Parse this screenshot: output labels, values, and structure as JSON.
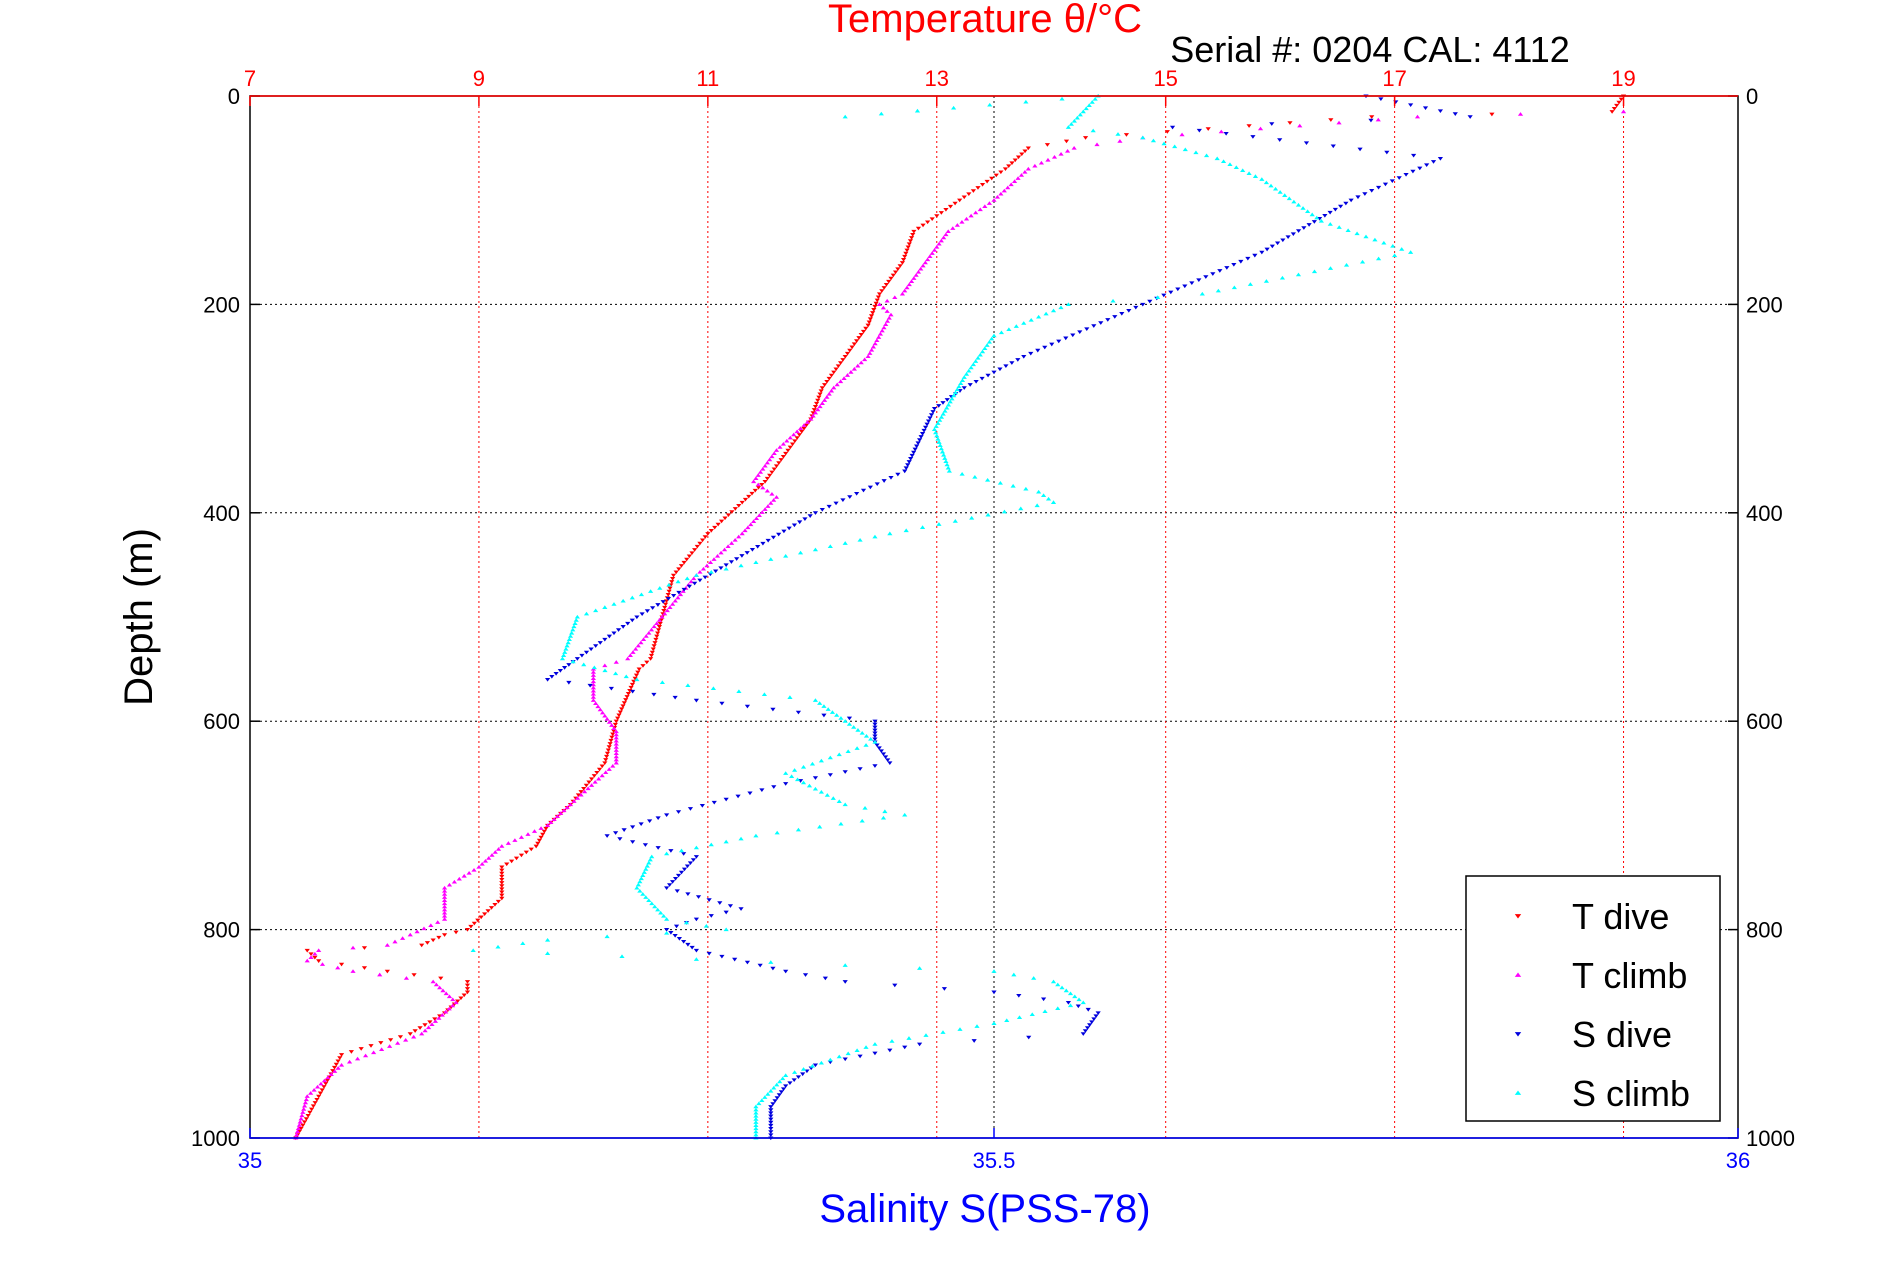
{
  "chart_data": {
    "type": "scatter",
    "title": "Temperature θ/°C",
    "subtitle": "Serial #: 0204  CAL: 4112",
    "ylabel": "Depth (m)",
    "xlabel_bottom": "Salinity S(PSS-78)",
    "xlabel_top": "Temperature θ/°C",
    "y_reversed": true,
    "ylim": [
      0,
      1000
    ],
    "ylim_ticks": [
      "0",
      "200",
      "400",
      "600",
      "800",
      "1000"
    ],
    "y_ticks": [
      0,
      200,
      400,
      600,
      800,
      1000
    ],
    "temp_lim": [
      7,
      20
    ],
    "temp_ticks": [
      7,
      9,
      11,
      13,
      15,
      17,
      19
    ],
    "temp_tick_labels": [
      "7",
      "9",
      "11",
      "13",
      "15",
      "17",
      "19"
    ],
    "sal_lim": [
      35,
      36
    ],
    "sal_ticks": [
      35,
      35.5,
      36
    ],
    "sal_tick_labels": [
      "35",
      "35.5",
      "36"
    ],
    "grid": true,
    "legend_position": "bottom-right",
    "colors": {
      "temperature_axis": "#ff0000",
      "salinity_axis": "#0000ff",
      "t_dive": "#ff0000",
      "t_climb": "#ff00ff",
      "s_dive": "#0000dd",
      "s_climb": "#00ffff"
    },
    "series": [
      {
        "name": "T dive",
        "axis": "temperature",
        "marker": "triangle-down",
        "color": "#ff0000",
        "x": [
          19.0,
          18.9,
          16.8,
          14.3,
          13.8,
          13.6,
          13.2,
          12.8,
          12.7,
          12.5,
          12.4,
          12.2,
          12.0,
          11.9,
          11.7,
          11.5,
          11.3,
          11.0,
          10.7,
          10.6,
          10.5,
          10.4,
          10.2,
          10.1,
          9.8,
          9.6,
          9.5,
          9.2,
          9.2,
          8.9,
          8.7,
          8.6,
          8.5,
          7.5,
          7.6,
          8.2,
          8.9,
          8.9,
          8.7,
          8.4,
          7.8,
          7.6,
          7.4
        ],
        "y": [
          0,
          15,
          20,
          40,
          50,
          70,
          100,
          130,
          160,
          190,
          220,
          250,
          280,
          310,
          340,
          370,
          390,
          420,
          460,
          500,
          540,
          550,
          600,
          640,
          680,
          700,
          720,
          740,
          770,
          800,
          805,
          810,
          815,
          820,
          830,
          840,
          850,
          860,
          880,
          900,
          920,
          960,
          1000
        ]
      },
      {
        "name": "T climb",
        "axis": "temperature",
        "marker": "triangle-up",
        "color": "#ff00ff",
        "x": [
          19.0,
          17.2,
          14.8,
          14.2,
          13.8,
          13.5,
          13.1,
          12.9,
          12.7,
          12.5,
          12.6,
          12.4,
          12.1,
          11.9,
          11.6,
          11.4,
          11.6,
          11.3,
          10.9,
          10.6,
          10.3,
          10.0,
          10.0,
          10.2,
          10.2,
          9.8,
          9.6,
          9.2,
          9.0,
          8.7,
          8.7,
          8.4,
          8.2,
          7.6,
          7.5,
          7.9,
          8.6,
          8.8,
          8.5,
          7.8,
          7.5,
          7.4
        ],
        "y": [
          15,
          20,
          40,
          50,
          70,
          100,
          130,
          160,
          190,
          200,
          210,
          250,
          280,
          310,
          340,
          370,
          385,
          420,
          460,
          500,
          540,
          550,
          580,
          610,
          640,
          680,
          700,
          720,
          740,
          760,
          790,
          805,
          815,
          820,
          830,
          840,
          850,
          870,
          900,
          930,
          960,
          1000
        ]
      },
      {
        "name": "S dive",
        "axis": "salinity",
        "marker": "triangle-down",
        "color": "#0000dd",
        "x": [
          35.75,
          35.82,
          35.62,
          35.8,
          35.74,
          35.68,
          35.6,
          35.52,
          35.48,
          35.46,
          35.45,
          35.44,
          35.38,
          35.32,
          35.26,
          35.22,
          35.2,
          35.3,
          35.42,
          35.42,
          35.43,
          35.36,
          35.28,
          35.24,
          35.3,
          35.28,
          35.33,
          35.3,
          35.28,
          35.3,
          35.36,
          35.4,
          35.5,
          35.55,
          35.57,
          35.56,
          35.45,
          35.38,
          35.36,
          35.35,
          35.35
        ],
        "y": [
          0,
          20,
          30,
          60,
          100,
          150,
          200,
          250,
          280,
          300,
          330,
          360,
          400,
          450,
          500,
          540,
          560,
          580,
          600,
          620,
          640,
          660,
          690,
          710,
          730,
          760,
          780,
          790,
          800,
          820,
          840,
          850,
          860,
          870,
          880,
          900,
          910,
          930,
          950,
          970,
          1000
        ]
      },
      {
        "name": "S climb",
        "axis": "salinity",
        "marker": "triangle-up",
        "color": "#00ffff",
        "x": [
          35.4,
          35.57,
          35.55,
          35.6,
          35.65,
          35.68,
          35.72,
          35.78,
          35.64,
          35.55,
          35.5,
          35.48,
          35.46,
          35.47,
          35.53,
          35.54,
          35.43,
          35.3,
          35.22,
          35.21,
          35.26,
          35.38,
          35.4,
          35.42,
          35.36,
          35.4,
          35.44,
          35.34,
          35.27,
          35.26,
          35.28,
          35.32,
          35.2,
          35.15,
          35.5,
          35.54,
          35.56,
          35.5,
          35.42,
          35.36,
          35.34,
          35.34
        ],
        "y": [
          20,
          0,
          30,
          40,
          60,
          80,
          120,
          150,
          190,
          200,
          230,
          270,
          320,
          360,
          380,
          390,
          420,
          460,
          500,
          540,
          560,
          580,
          600,
          620,
          650,
          680,
          690,
          710,
          730,
          760,
          790,
          800,
          810,
          820,
          840,
          850,
          870,
          890,
          910,
          940,
          970,
          1000
        ]
      }
    ],
    "legend": [
      "T dive",
      "T climb",
      "S dive",
      "S climb"
    ]
  }
}
